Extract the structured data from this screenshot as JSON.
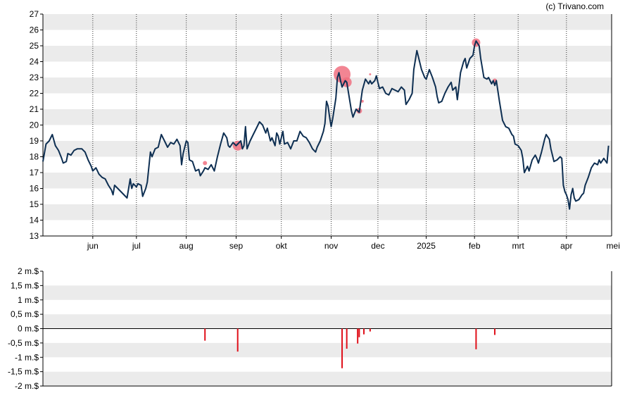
{
  "credit": "(c) Trivano.com",
  "chart_data": [
    {
      "type": "line",
      "ylim": [
        13,
        27
      ],
      "yticks": [
        13,
        14,
        15,
        16,
        17,
        18,
        19,
        20,
        21,
        22,
        23,
        24,
        25,
        26,
        27
      ],
      "xlim": [
        0,
        365
      ],
      "xticks": [
        {
          "label": "jun",
          "x": 32
        },
        {
          "label": "jul",
          "x": 60
        },
        {
          "label": "aug",
          "x": 92
        },
        {
          "label": "sep",
          "x": 124
        },
        {
          "label": "okt",
          "x": 153
        },
        {
          "label": "nov",
          "x": 185
        },
        {
          "label": "dec",
          "x": 215
        },
        {
          "label": "2025",
          "x": 246
        },
        {
          "label": "feb",
          "x": 277
        },
        {
          "label": "mrt",
          "x": 305
        },
        {
          "label": "apr",
          "x": 336
        },
        {
          "label": "mei",
          "x": 366
        }
      ],
      "grid": "horizontal bands, dotted vertical month lines",
      "series": [
        {
          "line_color": "#0e2f52",
          "points": [
            [
              0,
              17.7
            ],
            [
              2,
              18.8
            ],
            [
              4,
              19.0
            ],
            [
              6,
              19.4
            ],
            [
              8,
              18.7
            ],
            [
              10,
              18.4
            ],
            [
              12,
              17.9
            ],
            [
              13,
              17.6
            ],
            [
              15,
              17.7
            ],
            [
              16,
              18.2
            ],
            [
              18,
              18.1
            ],
            [
              20,
              18.4
            ],
            [
              22,
              18.5
            ],
            [
              25,
              18.5
            ],
            [
              27,
              18.3
            ],
            [
              29,
              17.8
            ],
            [
              31,
              17.4
            ],
            [
              32,
              17.1
            ],
            [
              34,
              17.3
            ],
            [
              36,
              16.9
            ],
            [
              38,
              16.7
            ],
            [
              40,
              16.6
            ],
            [
              42,
              16.2
            ],
            [
              44,
              15.9
            ],
            [
              45,
              15.6
            ],
            [
              46,
              16.2
            ],
            [
              48,
              16.0
            ],
            [
              50,
              15.8
            ],
            [
              52,
              15.6
            ],
            [
              54,
              15.4
            ],
            [
              56,
              16.6
            ],
            [
              57,
              16.0
            ],
            [
              58,
              16.3
            ],
            [
              60,
              16.1
            ],
            [
              61,
              16.3
            ],
            [
              63,
              16.2
            ],
            [
              64,
              15.5
            ],
            [
              66,
              16.0
            ],
            [
              67,
              16.4
            ],
            [
              69,
              18.3
            ],
            [
              70,
              18.0
            ],
            [
              72,
              18.5
            ],
            [
              74,
              18.6
            ],
            [
              76,
              19.4
            ],
            [
              78,
              19.0
            ],
            [
              80,
              18.6
            ],
            [
              82,
              18.9
            ],
            [
              84,
              18.8
            ],
            [
              86,
              19.1
            ],
            [
              88,
              18.7
            ],
            [
              89,
              17.5
            ],
            [
              90,
              18.2
            ],
            [
              92,
              19.0
            ],
            [
              93,
              18.9
            ],
            [
              94,
              17.8
            ],
            [
              96,
              17.7
            ],
            [
              98,
              17.1
            ],
            [
              100,
              17.2
            ],
            [
              101,
              16.8
            ],
            [
              103,
              17.1
            ],
            [
              104,
              17.3
            ],
            [
              106,
              17.2
            ],
            [
              108,
              17.5
            ],
            [
              110,
              17.1
            ],
            [
              112,
              18.0
            ],
            [
              114,
              18.8
            ],
            [
              116,
              19.5
            ],
            [
              118,
              19.2
            ],
            [
              119,
              18.7
            ],
            [
              120,
              18.6
            ],
            [
              122,
              18.9
            ],
            [
              124,
              18.7
            ],
            [
              125,
              18.8
            ],
            [
              127,
              19.0
            ],
            [
              128,
              18.5
            ],
            [
              129,
              18.7
            ],
            [
              130,
              19.9
            ],
            [
              131,
              18.5
            ],
            [
              133,
              19.0
            ],
            [
              135,
              19.4
            ],
            [
              137,
              19.8
            ],
            [
              139,
              20.2
            ],
            [
              141,
              20.0
            ],
            [
              143,
              19.5
            ],
            [
              144,
              19.8
            ],
            [
              146,
              19.0
            ],
            [
              147,
              19.2
            ],
            [
              149,
              18.7
            ],
            [
              150,
              19.5
            ],
            [
              151,
              19.3
            ],
            [
              152,
              18.8
            ],
            [
              154,
              19.6
            ],
            [
              155,
              18.8
            ],
            [
              157,
              18.9
            ],
            [
              159,
              18.5
            ],
            [
              161,
              19.0
            ],
            [
              163,
              19.0
            ],
            [
              165,
              19.6
            ],
            [
              167,
              19.3
            ],
            [
              169,
              19.2
            ],
            [
              171,
              18.9
            ],
            [
              173,
              18.5
            ],
            [
              175,
              18.3
            ],
            [
              176,
              18.6
            ],
            [
              178,
              19.0
            ],
            [
              180,
              19.6
            ],
            [
              181,
              20.1
            ],
            [
              182,
              21.5
            ],
            [
              183,
              21.2
            ],
            [
              184,
              20.5
            ],
            [
              185,
              19.9
            ],
            [
              186,
              20.4
            ],
            [
              188,
              21.7
            ],
            [
              189,
              23.0
            ],
            [
              190,
              23.3
            ],
            [
              191,
              22.8
            ],
            [
              192,
              22.4
            ],
            [
              194,
              22.8
            ],
            [
              195,
              22.7
            ],
            [
              197,
              21.5
            ],
            [
              198,
              20.9
            ],
            [
              199,
              20.5
            ],
            [
              201,
              21.0
            ],
            [
              203,
              20.8
            ],
            [
              205,
              22.2
            ],
            [
              207,
              22.9
            ],
            [
              209,
              22.6
            ],
            [
              210,
              22.8
            ],
            [
              211,
              22.6
            ],
            [
              213,
              22.8
            ],
            [
              214,
              23.1
            ],
            [
              215,
              22.7
            ],
            [
              216,
              22.3
            ],
            [
              218,
              22.4
            ],
            [
              220,
              22.0
            ],
            [
              222,
              21.9
            ],
            [
              224,
              22.3
            ],
            [
              226,
              22.2
            ],
            [
              228,
              22.1
            ],
            [
              230,
              22.4
            ],
            [
              232,
              22.2
            ],
            [
              233,
              21.3
            ],
            [
              235,
              21.6
            ],
            [
              237,
              22.0
            ],
            [
              238,
              23.5
            ],
            [
              240,
              24.7
            ],
            [
              241,
              24.3
            ],
            [
              243,
              23.5
            ],
            [
              245,
              23.0
            ],
            [
              246,
              22.9
            ],
            [
              248,
              23.5
            ],
            [
              250,
              23.0
            ],
            [
              252,
              22.4
            ],
            [
              253,
              21.8
            ],
            [
              254,
              21.4
            ],
            [
              256,
              21.5
            ],
            [
              258,
              22.0
            ],
            [
              260,
              22.4
            ],
            [
              262,
              22.7
            ],
            [
              263,
              22.2
            ],
            [
              265,
              22.4
            ],
            [
              266,
              21.6
            ],
            [
              268,
              23.3
            ],
            [
              270,
              24.0
            ],
            [
              271,
              24.2
            ],
            [
              272,
              23.6
            ],
            [
              274,
              24.2
            ],
            [
              276,
              24.4
            ],
            [
              277,
              25.0
            ],
            [
              278,
              25.3
            ],
            [
              280,
              25.0
            ],
            [
              281,
              24.2
            ],
            [
              283,
              23.0
            ],
            [
              285,
              22.9
            ],
            [
              286,
              23.0
            ],
            [
              288,
              22.6
            ],
            [
              289,
              22.8
            ],
            [
              290,
              22.5
            ],
            [
              291,
              22.8
            ],
            [
              293,
              21.5
            ],
            [
              295,
              20.3
            ],
            [
              297,
              19.9
            ],
            [
              299,
              19.8
            ],
            [
              301,
              19.4
            ],
            [
              302,
              19.3
            ],
            [
              303,
              18.8
            ],
            [
              305,
              18.7
            ],
            [
              307,
              18.4
            ],
            [
              308,
              17.9
            ],
            [
              309,
              17.0
            ],
            [
              311,
              17.4
            ],
            [
              312,
              17.1
            ],
            [
              314,
              17.8
            ],
            [
              316,
              18.1
            ],
            [
              317,
              17.9
            ],
            [
              318,
              17.6
            ],
            [
              320,
              18.3
            ],
            [
              322,
              19.1
            ],
            [
              323,
              19.4
            ],
            [
              325,
              19.1
            ],
            [
              326,
              18.5
            ],
            [
              328,
              17.7
            ],
            [
              330,
              17.8
            ],
            [
              332,
              18.0
            ],
            [
              333,
              17.9
            ],
            [
              334,
              16.2
            ],
            [
              335,
              15.8
            ],
            [
              336,
              15.6
            ],
            [
              337,
              15.3
            ],
            [
              338,
              14.7
            ],
            [
              339,
              15.6
            ],
            [
              340,
              16.0
            ],
            [
              341,
              15.4
            ],
            [
              342,
              15.2
            ],
            [
              344,
              15.3
            ],
            [
              346,
              15.6
            ],
            [
              347,
              15.7
            ],
            [
              348,
              16.2
            ],
            [
              350,
              16.7
            ],
            [
              352,
              17.3
            ],
            [
              354,
              17.6
            ],
            [
              356,
              17.5
            ],
            [
              357,
              17.8
            ],
            [
              358,
              17.6
            ],
            [
              360,
              17.9
            ],
            [
              362,
              17.6
            ],
            [
              363,
              18.7
            ]
          ]
        }
      ],
      "markers": [
        {
          "x": 104,
          "y": 17.6,
          "r": 3,
          "color": "#f07080"
        },
        {
          "x": 125,
          "y": 18.7,
          "r": 7,
          "color": "#f07080"
        },
        {
          "x": 192,
          "y": 23.2,
          "r": 12,
          "color": "#f07080"
        },
        {
          "x": 195,
          "y": 22.7,
          "r": 7,
          "color": "#f07080"
        },
        {
          "x": 203,
          "y": 20.9,
          "r": 4,
          "color": "#f07080"
        },
        {
          "x": 205,
          "y": 21.5,
          "r": 2,
          "color": "#f07080"
        },
        {
          "x": 210,
          "y": 23.2,
          "r": 1.5,
          "color": "#f07080"
        },
        {
          "x": 278,
          "y": 25.2,
          "r": 6,
          "color": "#f07080"
        },
        {
          "x": 290,
          "y": 22.8,
          "r": 3,
          "color": "#f07080"
        }
      ]
    },
    {
      "type": "bar",
      "ylim": [
        -2,
        2
      ],
      "yticks": [
        {
          "label": "2 m.$",
          "v": 2
        },
        {
          "label": "1,5 m.$",
          "v": 1.5
        },
        {
          "label": "1 m.$",
          "v": 1
        },
        {
          "label": "0,5 m.$",
          "v": 0.5
        },
        {
          "label": "0 m.$",
          "v": 0
        },
        {
          "label": "-0,5 m.$",
          "v": -0.5
        },
        {
          "label": "-1 m.$",
          "v": -1
        },
        {
          "label": "-1,5 m.$",
          "v": -1.5
        },
        {
          "label": "-2 m.$",
          "v": -2
        }
      ],
      "xlim": [
        0,
        365
      ],
      "bar_color": "#e0101a",
      "bars": [
        {
          "x": 104,
          "v": -0.42
        },
        {
          "x": 125,
          "v": -0.8
        },
        {
          "x": 192,
          "v": -1.38
        },
        {
          "x": 195,
          "v": -0.7
        },
        {
          "x": 202,
          "v": -0.52
        },
        {
          "x": 203,
          "v": -0.3
        },
        {
          "x": 206,
          "v": -0.2
        },
        {
          "x": 210,
          "v": -0.1
        },
        {
          "x": 278,
          "v": -0.72
        },
        {
          "x": 290,
          "v": -0.22
        }
      ]
    }
  ]
}
